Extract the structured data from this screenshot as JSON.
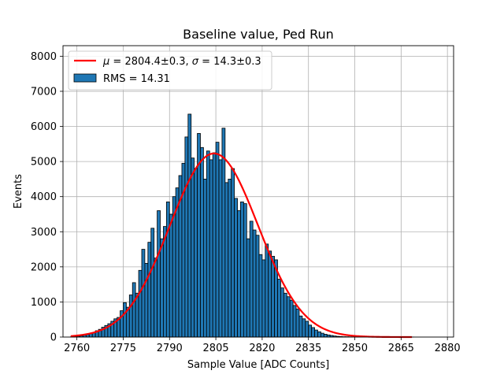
{
  "chart_data": {
    "type": "bar",
    "title": "Baseline value, Ped Run",
    "xlabel": "Sample Value [ADC Counts]",
    "ylabel": "Events",
    "xlim": [
      2755.5,
      2882
    ],
    "ylim": [
      0,
      8300
    ],
    "xticks": [
      2760,
      2775,
      2790,
      2805,
      2820,
      2835,
      2850,
      2865,
      2880
    ],
    "yticks": [
      0,
      1000,
      2000,
      3000,
      4000,
      5000,
      6000,
      7000,
      8000
    ],
    "grid": true,
    "legend_position": "top-left",
    "bin_width": 1,
    "bins_start": [
      2758,
      2759,
      2760,
      2761,
      2762,
      2763,
      2764,
      2765,
      2766,
      2767,
      2768,
      2769,
      2770,
      2771,
      2772,
      2773,
      2774,
      2775,
      2776,
      2777,
      2778,
      2779,
      2780,
      2781,
      2782,
      2783,
      2784,
      2785,
      2786,
      2787,
      2788,
      2789,
      2790,
      2791,
      2792,
      2793,
      2794,
      2795,
      2796,
      2797,
      2798,
      2799,
      2800,
      2801,
      2802,
      2803,
      2804,
      2805,
      2806,
      2807,
      2808,
      2809,
      2810,
      2811,
      2812,
      2813,
      2814,
      2815,
      2816,
      2817,
      2818,
      2819,
      2820,
      2821,
      2822,
      2823,
      2824,
      2825,
      2826,
      2827,
      2828,
      2829,
      2830,
      2831,
      2832,
      2833,
      2834,
      2835,
      2836,
      2837,
      2838,
      2839,
      2840,
      2841,
      2842,
      2843,
      2844,
      2845,
      2846,
      2847,
      2848,
      2849,
      2850,
      2851,
      2852,
      2853,
      2854,
      2855,
      2856,
      2857,
      2858,
      2859,
      2860,
      2861,
      2862,
      2863,
      2864,
      2865,
      2866,
      2867,
      2868
    ],
    "counts": [
      10,
      15,
      25,
      35,
      50,
      70,
      100,
      130,
      180,
      220,
      280,
      330,
      380,
      450,
      520,
      560,
      750,
      980,
      850,
      1200,
      1550,
      1250,
      1900,
      2500,
      2100,
      2700,
      3100,
      2250,
      3600,
      2800,
      3150,
      3850,
      3500,
      4000,
      4250,
      4600,
      4950,
      5700,
      6350,
      5100,
      4800,
      5800,
      5400,
      4500,
      5300,
      5050,
      5250,
      5550,
      5050,
      5950,
      4400,
      4500,
      4800,
      3950,
      3600,
      3850,
      3800,
      2800,
      3300,
      3050,
      2900,
      2350,
      2200,
      2650,
      2450,
      2300,
      2200,
      1650,
      1400,
      1250,
      1150,
      1050,
      900,
      800,
      600,
      520,
      450,
      340,
      270,
      200,
      150,
      110,
      80,
      60,
      45,
      30,
      20,
      15,
      10,
      8,
      6,
      5,
      4,
      3,
      2,
      2,
      2,
      1,
      1,
      1,
      1,
      1,
      1,
      1,
      1,
      1,
      1,
      1,
      1,
      1,
      1
    ],
    "fit": {
      "mu": 2804.4,
      "sigma": 14.3,
      "amplitude": 5230,
      "x_range": [
        2758,
        2868.5
      ]
    },
    "series": [
      {
        "name": "$\\mu = 2804.4\\pm0.3$, $\\sigma = 14.3\\pm0.3$",
        "kind": "line",
        "color": "#ff0000"
      },
      {
        "name": "RMS = 14.31",
        "kind": "bar",
        "color": "#1f77b4",
        "edgecolor": "#000000"
      }
    ]
  },
  "legend": {
    "fit_prefix_mu": "μ",
    "fit_eq1": " = 2804.4±0.3, ",
    "fit_prefix_sigma": "σ",
    "fit_eq2": " = 14.3±0.3",
    "hist_label": "RMS = 14.31"
  },
  "colors": {
    "bar": "#1f77b4",
    "fit": "#ff0000",
    "grid": "#b0b0b0"
  }
}
